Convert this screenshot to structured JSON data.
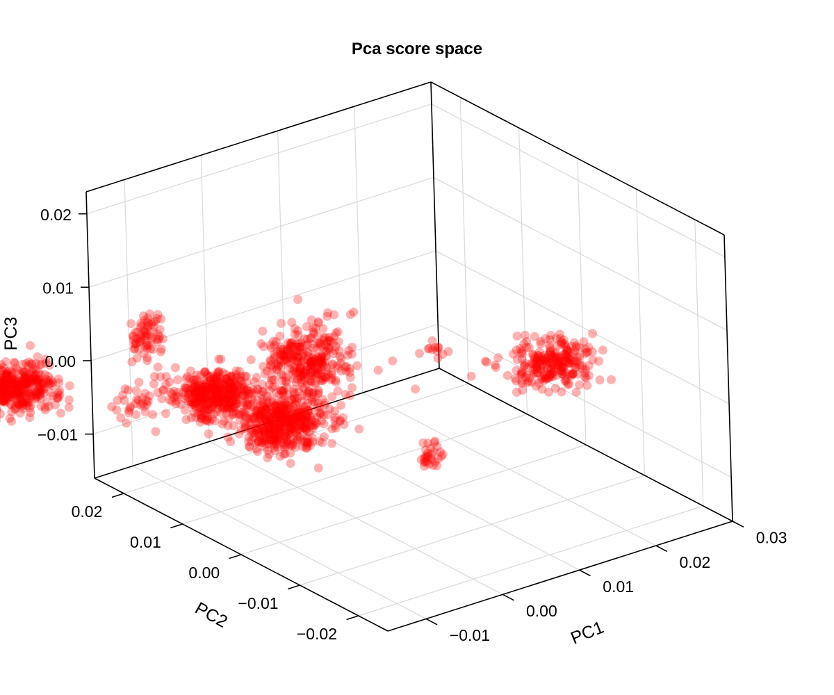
{
  "chart_data": {
    "type": "scatter",
    "projection": "3d",
    "title": "Pca score space",
    "xlabel": "PC1",
    "ylabel": "PC2",
    "zlabel": "PC3",
    "xlim": [
      -0.015,
      0.03
    ],
    "ylim": [
      -0.025,
      0.025
    ],
    "zlim": [
      -0.016,
      0.023
    ],
    "x_ticks": [
      "−0.01",
      "0.00",
      "0.01",
      "0.02",
      "0.03"
    ],
    "y_ticks": [
      "−0.02",
      "−0.01",
      "0.00",
      "0.01",
      "0.02"
    ],
    "z_ticks": [
      "−0.01",
      "0.00",
      "0.01",
      "0.02"
    ],
    "x_tick_values": [
      -0.01,
      0.0,
      0.01,
      0.02,
      0.03
    ],
    "y_tick_values": [
      -0.02,
      -0.01,
      0.0,
      0.01,
      0.02
    ],
    "z_tick_values": [
      -0.01,
      0.0,
      0.01,
      0.02
    ],
    "grid": true,
    "marker_color": "#ff0000",
    "marker_opacity": 0.3,
    "clusters": [
      {
        "center": [
          -0.009,
          -0.004,
          0.01
        ],
        "spread": [
          0.0023,
          0.0023,
          0.0022
        ],
        "n": 320
      },
      {
        "center": [
          0.0215,
          -0.006,
          0.0005
        ],
        "spread": [
          0.0022,
          0.0022,
          0.0014
        ],
        "n": 240
      },
      {
        "center": [
          -0.003,
          0.008,
          -0.005
        ],
        "spread": [
          0.0024,
          0.0024,
          0.0015
        ],
        "n": 400
      },
      {
        "center": [
          -0.0045,
          0.018,
          -0.005
        ],
        "spread": [
          0.0022,
          0.0022,
          0.0012
        ],
        "n": 380
      },
      {
        "center": [
          -0.016,
          0.014,
          0.008
        ],
        "spread": [
          0.0009,
          0.0009,
          0.0018
        ],
        "n": 70
      },
      {
        "center": [
          -0.026,
          0.02,
          0.0025
        ],
        "spread": [
          0.0015,
          0.0015,
          0.0016
        ],
        "n": 110
      },
      {
        "center": [
          -0.024,
          0.028,
          -0.002
        ],
        "spread": [
          0.0018,
          0.0018,
          0.0012
        ],
        "n": 320
      },
      {
        "center": [
          -0.0015,
          -0.016,
          0.0138
        ],
        "spread": [
          0.0009,
          0.0009,
          0.0006
        ],
        "n": 12
      },
      {
        "center": [
          -0.0145,
          0.0065,
          0.0
        ],
        "spread": [
          0.0006,
          0.0006,
          0.0006
        ],
        "n": 14
      },
      {
        "center": [
          -0.0055,
          0.008,
          -0.0065
        ],
        "spread": [
          0.0011,
          0.0011,
          0.0009
        ],
        "n": 50
      },
      {
        "center": [
          0.004,
          -0.008,
          -0.0055
        ],
        "spread": [
          0.0009,
          0.0009,
          0.0009
        ],
        "n": 30
      },
      {
        "center": [
          -0.0125,
          -0.0005,
          0.0025
        ],
        "spread": [
          0.0006,
          0.0006,
          0.0004
        ],
        "n": 10
      },
      {
        "center": [
          -0.0175,
          0.0145,
          -0.0006
        ],
        "spread": [
          0.0016,
          0.0016,
          0.0012
        ],
        "n": 30
      }
    ],
    "outliers": [
      [
        -0.001,
        -0.022,
        0.0128
      ],
      [
        0.01,
        -0.017,
        0.011
      ],
      [
        0.0145,
        -0.006,
        0.0035
      ],
      [
        0.013,
        -0.006,
        0.0034
      ],
      [
        -0.016,
        0.004,
        0.0075
      ],
      [
        0.0235,
        0.0065,
        -0.006
      ],
      [
        -0.0038,
        -0.016,
        0.0095
      ],
      [
        0.0175,
        -0.006,
        -0.001
      ],
      [
        -0.0065,
        -0.0035,
        0.0112
      ],
      [
        -0.0095,
        -0.009,
        0.0155
      ],
      [
        -0.006,
        -0.0055,
        0.0135
      ],
      [
        -0.008,
        -0.0072,
        0.0138
      ]
    ]
  }
}
